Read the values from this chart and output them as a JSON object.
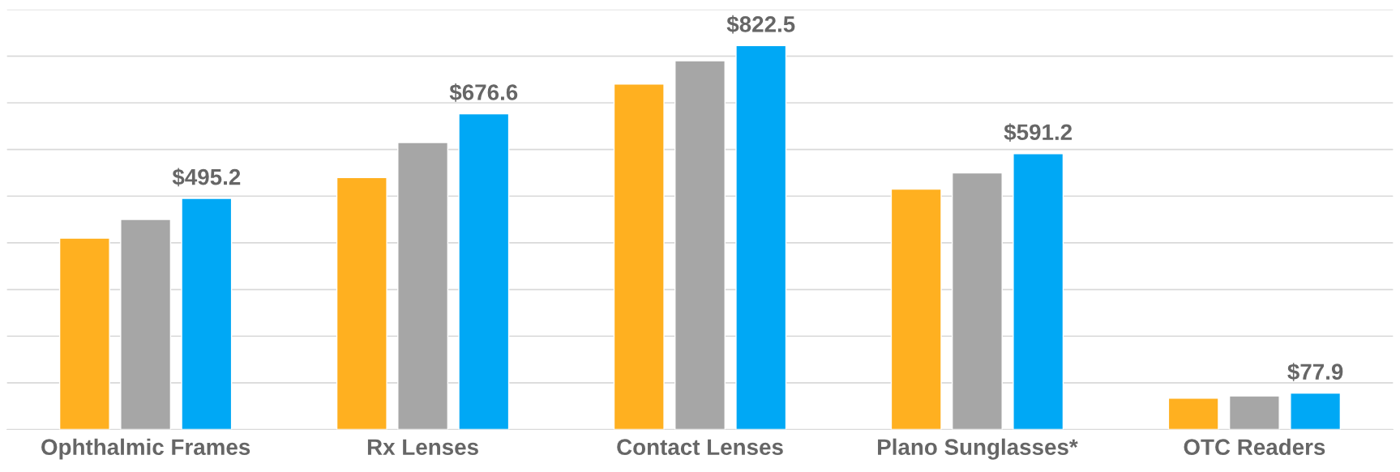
{
  "chart_data": {
    "type": "bar",
    "categories": [
      "Ophthalmic Frames",
      "Rx Lenses",
      "Contact Lenses",
      "Plano Sunglasses*",
      "OTC Readers"
    ],
    "series": [
      {
        "color": "#ffb020",
        "values": [
          410,
          540,
          740,
          515,
          67
        ]
      },
      {
        "color": "#a6a6a6",
        "values": [
          450,
          615,
          790,
          550,
          72
        ]
      },
      {
        "color": "#00a8f5",
        "values": [
          495.2,
          676.6,
          822.5,
          591.2,
          77.9
        ],
        "value_labels": [
          "$495.2",
          "$676.6",
          "$822.5",
          "$591.2",
          "$77.9"
        ]
      }
    ],
    "ylim": [
      0,
      900
    ],
    "yticks": [
      {
        "value": 0,
        "label": null
      },
      {
        "value": 100,
        "label": null
      },
      {
        "value": 200,
        "label": null
      },
      {
        "value": 300,
        "label": null
      },
      {
        "value": 400,
        "label": null
      },
      {
        "value": 500,
        "label": null
      },
      {
        "value": 600,
        "label": null
      },
      {
        "value": 700,
        "label": null
      },
      {
        "value": 800,
        "label": null
      },
      {
        "value": 900,
        "label": null
      }
    ],
    "tick_labels": "x",
    "grid": "y"
  }
}
